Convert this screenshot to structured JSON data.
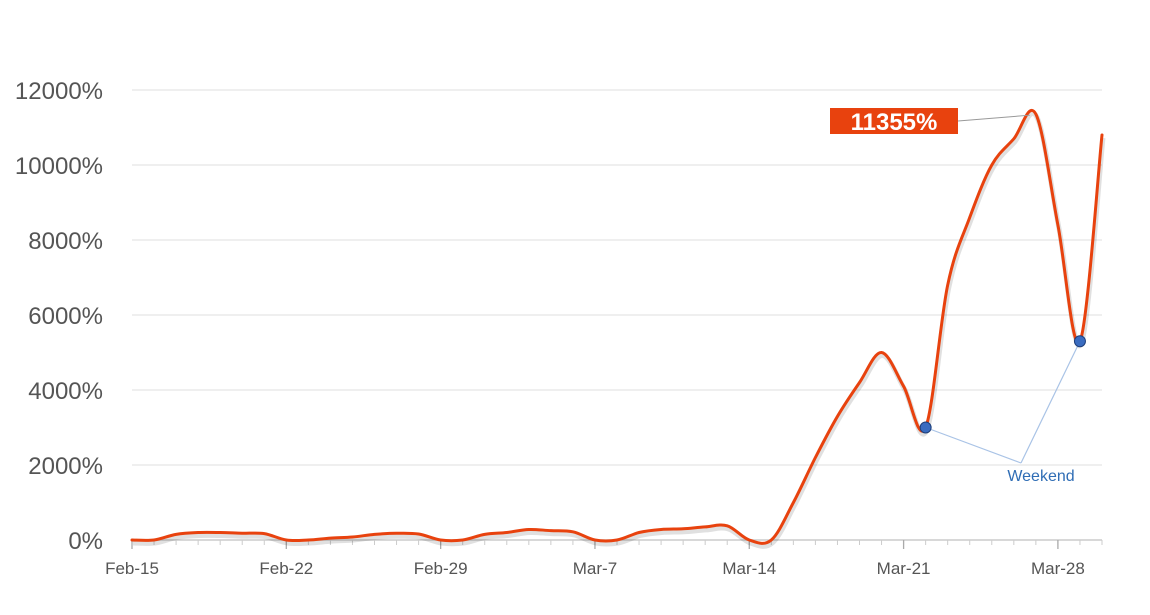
{
  "chart_data": {
    "type": "line",
    "ylim": [
      0,
      12000
    ],
    "xlim": [
      "Feb-15",
      "Mar-30"
    ],
    "y_ticks": [
      "0%",
      "2000%",
      "4000%",
      "6000%",
      "8000%",
      "10000%",
      "12000%"
    ],
    "y_tick_values": [
      0,
      2000,
      4000,
      6000,
      8000,
      10000,
      12000
    ],
    "x_ticks": [
      "Feb-15",
      "Feb-22",
      "Feb-29",
      "Mar-7",
      "Mar-14",
      "Mar-21",
      "Mar-28"
    ],
    "grid": true,
    "series": [
      {
        "color": "#e8420e",
        "points": [
          [
            "Feb-15",
            0
          ],
          [
            "Feb-16",
            0
          ],
          [
            "Feb-17",
            150
          ],
          [
            "Feb-18",
            200
          ],
          [
            "Feb-19",
            200
          ],
          [
            "Feb-20",
            180
          ],
          [
            "Feb-21",
            170
          ],
          [
            "Feb-22",
            0
          ],
          [
            "Feb-23",
            0
          ],
          [
            "Feb-24",
            50
          ],
          [
            "Feb-25",
            80
          ],
          [
            "Feb-26",
            150
          ],
          [
            "Feb-27",
            180
          ],
          [
            "Feb-28",
            160
          ],
          [
            "Feb-29",
            0
          ],
          [
            "Mar-1",
            0
          ],
          [
            "Mar-2",
            150
          ],
          [
            "Mar-3",
            200
          ],
          [
            "Mar-4",
            280
          ],
          [
            "Mar-5",
            250
          ],
          [
            "Mar-6",
            220
          ],
          [
            "Mar-7",
            0
          ],
          [
            "Mar-8",
            0
          ],
          [
            "Mar-9",
            200
          ],
          [
            "Mar-10",
            280
          ],
          [
            "Mar-11",
            300
          ],
          [
            "Mar-12",
            350
          ],
          [
            "Mar-13",
            380
          ],
          [
            "Mar-14",
            0
          ],
          [
            "Mar-15",
            0
          ],
          [
            "Mar-16",
            1000
          ],
          [
            "Mar-17",
            2200
          ],
          [
            "Mar-18",
            3300
          ],
          [
            "Mar-19",
            4200
          ],
          [
            "Mar-20",
            5000
          ],
          [
            "Mar-21",
            4100
          ],
          [
            "Mar-22",
            3000
          ],
          [
            "Mar-23",
            6800
          ],
          [
            "Mar-24",
            8600
          ],
          [
            "Mar-25",
            10000
          ],
          [
            "Mar-26",
            10700
          ],
          [
            "Mar-27",
            11355
          ],
          [
            "Mar-28",
            8400
          ],
          [
            "Mar-29",
            5300
          ],
          [
            "Mar-30",
            10800
          ]
        ]
      }
    ],
    "annotations": [
      {
        "text": "11355%",
        "x": "Mar-27",
        "y": 11355,
        "style": "callout",
        "color": "#e8420e"
      },
      {
        "text": "Weekend",
        "style": "label",
        "color": "#2f6db5",
        "targets": [
          {
            "x": "Mar-22",
            "y": 3000
          },
          {
            "x": "Mar-29",
            "y": 5300
          }
        ]
      }
    ],
    "colors": {
      "line": "#e8420e",
      "weekend_marker": "#3a6cc0",
      "weekend_text": "#2f6db5",
      "grid": "#e5e5e5",
      "axis": "#cccccc",
      "tick_text": "#555555"
    }
  }
}
